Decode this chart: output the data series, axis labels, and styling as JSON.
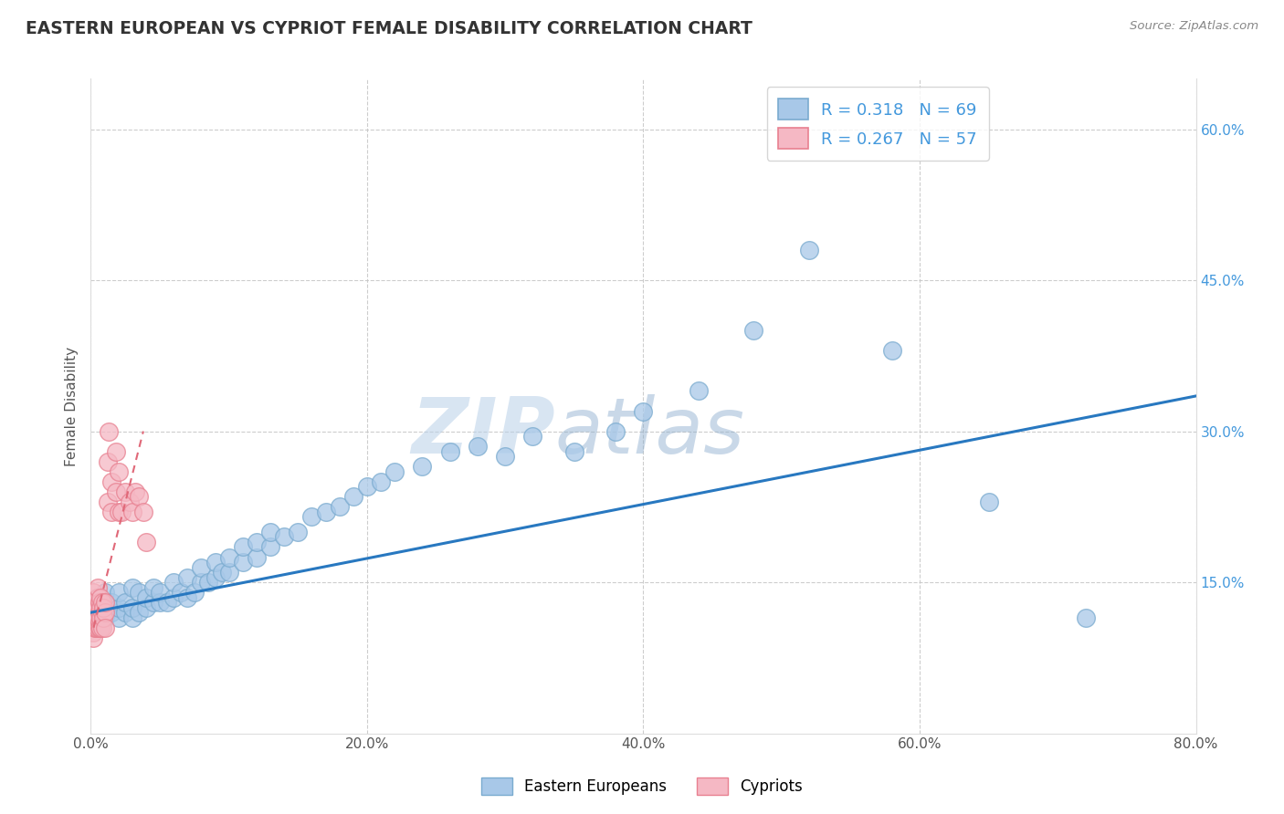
{
  "title": "EASTERN EUROPEAN VS CYPRIOT FEMALE DISABILITY CORRELATION CHART",
  "source": "Source: ZipAtlas.com",
  "ylabel": "Female Disability",
  "xlim": [
    0.0,
    0.8
  ],
  "ylim": [
    0.0,
    0.65
  ],
  "xtick_labels": [
    "0.0%",
    "20.0%",
    "40.0%",
    "60.0%",
    "80.0%"
  ],
  "xtick_vals": [
    0.0,
    0.2,
    0.4,
    0.6,
    0.8
  ],
  "ytick_labels": [
    "15.0%",
    "30.0%",
    "45.0%",
    "60.0%"
  ],
  "ytick_vals": [
    0.15,
    0.3,
    0.45,
    0.6
  ],
  "watermark_zip": "ZIP",
  "watermark_atlas": "atlas",
  "legend_labels": [
    "Eastern Europeans",
    "Cypriots"
  ],
  "R_eastern": 0.318,
  "N_eastern": 69,
  "R_cypriot": 0.267,
  "N_cypriot": 57,
  "eastern_color": "#a8c8e8",
  "eastern_edge_color": "#7aabcf",
  "cypriot_color": "#f5b8c4",
  "cypriot_edge_color": "#e88090",
  "eastern_line_color": "#2878c0",
  "cypriot_line_color": "#e06878",
  "background_color": "#ffffff",
  "grid_color": "#c8c8c8",
  "title_color": "#333333",
  "source_color": "#888888",
  "right_tick_color": "#4499dd",
  "eastern_x": [
    0.005,
    0.005,
    0.005,
    0.01,
    0.01,
    0.01,
    0.01,
    0.015,
    0.015,
    0.02,
    0.02,
    0.02,
    0.025,
    0.025,
    0.03,
    0.03,
    0.03,
    0.035,
    0.035,
    0.04,
    0.04,
    0.045,
    0.045,
    0.05,
    0.05,
    0.055,
    0.06,
    0.06,
    0.065,
    0.07,
    0.07,
    0.075,
    0.08,
    0.08,
    0.085,
    0.09,
    0.09,
    0.095,
    0.1,
    0.1,
    0.11,
    0.11,
    0.12,
    0.12,
    0.13,
    0.13,
    0.14,
    0.15,
    0.16,
    0.17,
    0.18,
    0.19,
    0.2,
    0.21,
    0.22,
    0.24,
    0.26,
    0.28,
    0.3,
    0.32,
    0.35,
    0.38,
    0.4,
    0.44,
    0.48,
    0.52,
    0.58,
    0.65,
    0.72
  ],
  "eastern_y": [
    0.125,
    0.135,
    0.115,
    0.12,
    0.13,
    0.115,
    0.14,
    0.12,
    0.13,
    0.115,
    0.125,
    0.14,
    0.12,
    0.13,
    0.115,
    0.125,
    0.145,
    0.12,
    0.14,
    0.125,
    0.135,
    0.13,
    0.145,
    0.13,
    0.14,
    0.13,
    0.135,
    0.15,
    0.14,
    0.135,
    0.155,
    0.14,
    0.15,
    0.165,
    0.15,
    0.155,
    0.17,
    0.16,
    0.16,
    0.175,
    0.17,
    0.185,
    0.175,
    0.19,
    0.185,
    0.2,
    0.195,
    0.2,
    0.215,
    0.22,
    0.225,
    0.235,
    0.245,
    0.25,
    0.26,
    0.265,
    0.28,
    0.285,
    0.275,
    0.295,
    0.28,
    0.3,
    0.32,
    0.34,
    0.4,
    0.48,
    0.38,
    0.23,
    0.115
  ],
  "cypriot_x": [
    0.002,
    0.002,
    0.002,
    0.002,
    0.002,
    0.002,
    0.002,
    0.002,
    0.003,
    0.003,
    0.003,
    0.003,
    0.003,
    0.003,
    0.004,
    0.004,
    0.004,
    0.004,
    0.004,
    0.005,
    0.005,
    0.005,
    0.005,
    0.005,
    0.006,
    0.006,
    0.006,
    0.006,
    0.007,
    0.007,
    0.007,
    0.007,
    0.008,
    0.008,
    0.008,
    0.009,
    0.009,
    0.01,
    0.01,
    0.01,
    0.012,
    0.012,
    0.013,
    0.015,
    0.015,
    0.018,
    0.018,
    0.02,
    0.02,
    0.022,
    0.025,
    0.028,
    0.03,
    0.032,
    0.035,
    0.038,
    0.04
  ],
  "cypriot_y": [
    0.115,
    0.125,
    0.1,
    0.13,
    0.095,
    0.14,
    0.108,
    0.118,
    0.11,
    0.12,
    0.105,
    0.13,
    0.115,
    0.125,
    0.11,
    0.12,
    0.105,
    0.13,
    0.115,
    0.115,
    0.125,
    0.105,
    0.135,
    0.145,
    0.11,
    0.12,
    0.105,
    0.13,
    0.115,
    0.125,
    0.105,
    0.135,
    0.12,
    0.13,
    0.105,
    0.115,
    0.125,
    0.12,
    0.13,
    0.105,
    0.23,
    0.27,
    0.3,
    0.22,
    0.25,
    0.24,
    0.28,
    0.22,
    0.26,
    0.22,
    0.24,
    0.23,
    0.22,
    0.24,
    0.235,
    0.22,
    0.19
  ],
  "east_line_x": [
    0.0,
    0.8
  ],
  "east_line_y": [
    0.12,
    0.335
  ],
  "cyp_line_x": [
    0.002,
    0.038
  ],
  "cyp_line_y": [
    0.105,
    0.3
  ]
}
